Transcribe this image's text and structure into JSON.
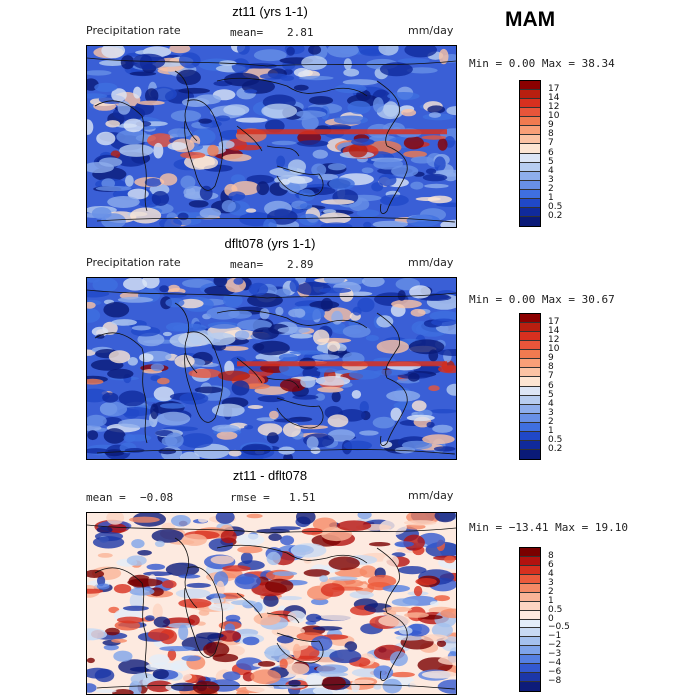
{
  "season": "MAM",
  "panels": [
    {
      "title": "zt11 (yrs 1-1)",
      "variable": "Precipitation rate",
      "stat_label": "mean=",
      "stat_value": "2.81",
      "units": "mm/day",
      "minmax": "Min =    0.00 Max =   38.34",
      "colorbar_labels": [
        "17",
        "14",
        "12",
        "10",
        "9",
        "8",
        "7",
        "6",
        "5",
        "4",
        "3",
        "2",
        "1",
        "0.5",
        "0.2"
      ],
      "map_type": "absolute"
    },
    {
      "title": "dflt078 (yrs 1-1)",
      "variable": "Precipitation rate",
      "stat_label": "mean=",
      "stat_value": "2.89",
      "units": "mm/day",
      "minmax": "Min =    0.00 Max =   30.67",
      "colorbar_labels": [
        "17",
        "14",
        "12",
        "10",
        "9",
        "8",
        "7",
        "6",
        "5",
        "4",
        "3",
        "2",
        "1",
        "0.5",
        "0.2"
      ],
      "map_type": "absolute"
    },
    {
      "title": "zt11 - dflt078",
      "variable": "mean =",
      "stat_label": "rmse =",
      "variable_value": "−0.08",
      "stat_value": "1.51",
      "units": "mm/day",
      "minmax": "Min = −13.41 Max =   19.10",
      "colorbar_labels": [
        "8",
        "6",
        "4",
        "3",
        "2",
        "1",
        "0.5",
        "0",
        "−0.5",
        "−1",
        "−2",
        "−3",
        "−4",
        "−6",
        "−8"
      ],
      "map_type": "difference"
    }
  ],
  "abs_colors": [
    "#8b0000",
    "#b81f10",
    "#d7301f",
    "#e8553a",
    "#f07a50",
    "#f89f78",
    "#fbc3a4",
    "#fde6d3",
    "#dce6f6",
    "#b7cdf0",
    "#8eaeec",
    "#6890e6",
    "#3f6fe0",
    "#2048c8",
    "#102a9c",
    "#0a1a78"
  ],
  "diff_colors": [
    "#7a0000",
    "#b3120f",
    "#d7301f",
    "#ec5b3c",
    "#f58a66",
    "#fab497",
    "#fdd5c2",
    "#fdeae0",
    "#e3edf9",
    "#c8daf3",
    "#a4c1ee",
    "#7ea4ea",
    "#5580e2",
    "#3359d0",
    "#1c37a8",
    "#0d1c7a"
  ]
}
